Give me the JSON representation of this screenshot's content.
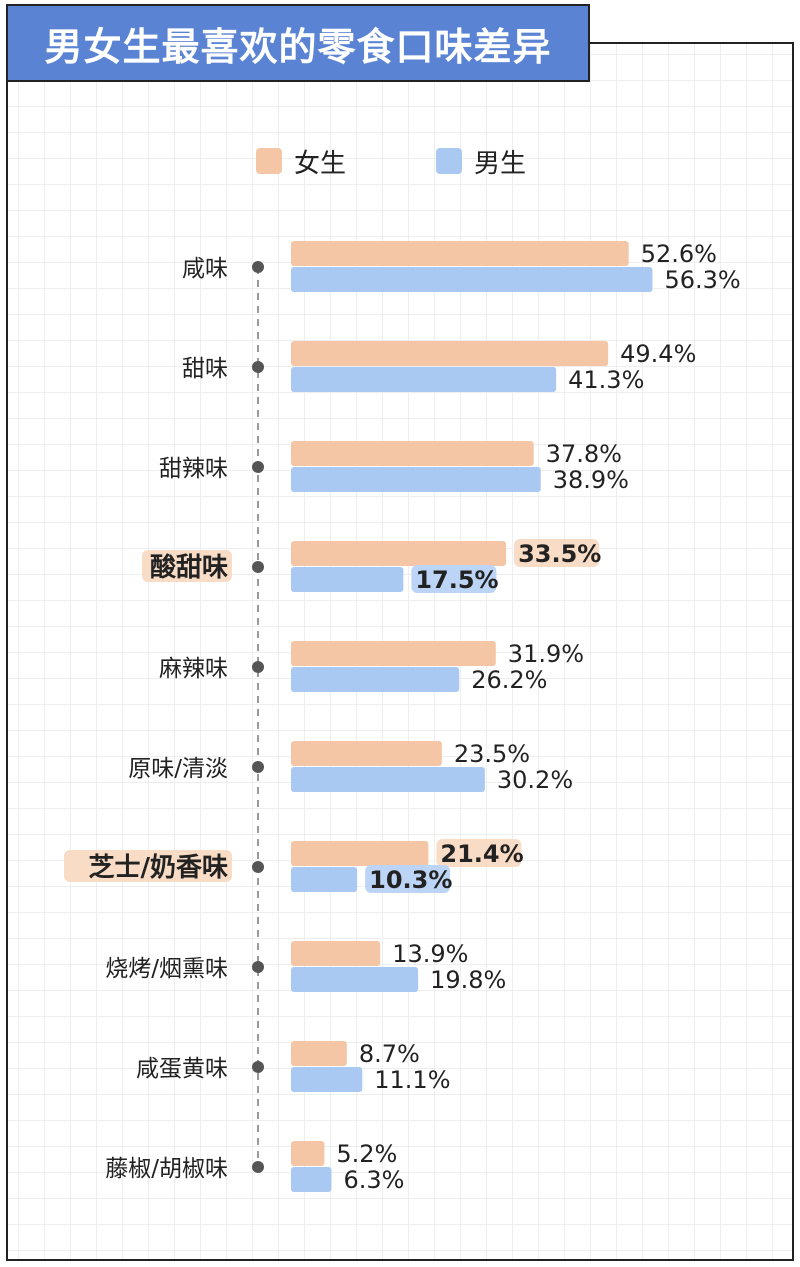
{
  "title": "男女生最喜欢的零食口味差异",
  "colors": {
    "female": "#f5c6a5",
    "male": "#a9c8f2",
    "title_bg": "#5b83d4",
    "highlight_bg": "#f9dcc6",
    "highlight_male_bg": "#bcd5f6"
  },
  "chart_data": {
    "type": "bar",
    "orientation": "horizontal",
    "categories": [
      "咸味",
      "甜味",
      "甜辣味",
      "酸甜味",
      "麻辣味",
      "原味/清淡",
      "芝士/奶香味",
      "烧烤/烟熏味",
      "咸蛋黄味",
      "藤椒/胡椒味"
    ],
    "highlighted": [
      "酸甜味",
      "芝士/奶香味"
    ],
    "series": [
      {
        "name": "女生",
        "values": [
          52.6,
          49.4,
          37.8,
          33.5,
          31.9,
          23.5,
          21.4,
          13.9,
          8.7,
          5.2
        ]
      },
      {
        "name": "男生",
        "values": [
          56.3,
          41.3,
          38.9,
          17.5,
          26.2,
          30.2,
          10.3,
          19.8,
          11.1,
          6.3
        ]
      }
    ],
    "value_labels": {
      "女生": [
        "52.6%",
        "49.4%",
        "37.8%",
        "33.5%",
        "31.9%",
        "23.5%",
        "21.4%",
        "13.9%",
        "8.7%",
        "5.2%"
      ],
      "男生": [
        "56.3%",
        "41.3%",
        "38.9%",
        "17.5%",
        "26.2%",
        "30.2%",
        "10.3%",
        "19.8%",
        "11.1%",
        "6.3%"
      ]
    },
    "legend_position": "top",
    "grid": true
  }
}
